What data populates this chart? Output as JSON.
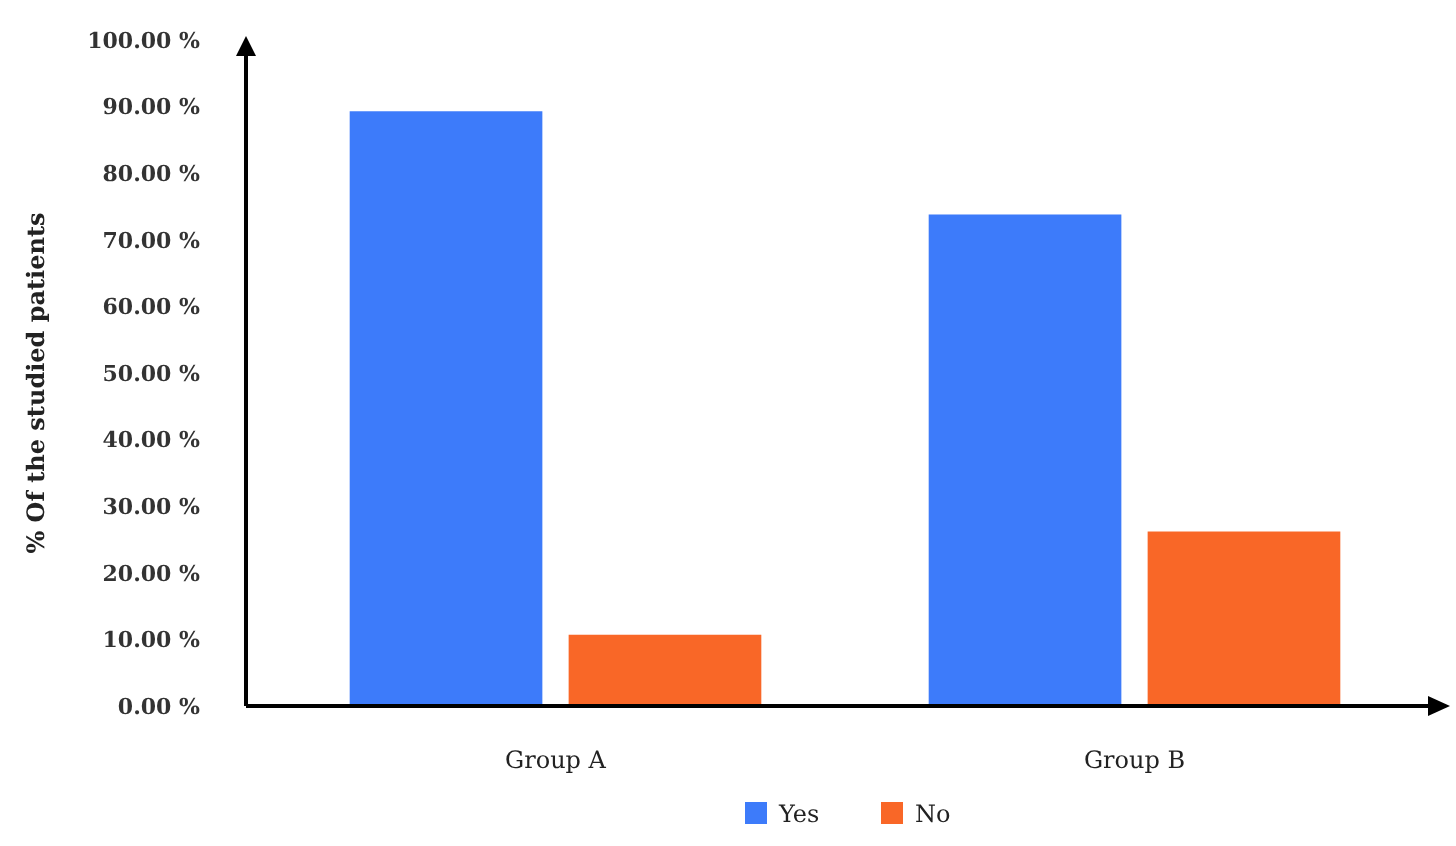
{
  "chart_data": {
    "type": "bar",
    "ylabel": "% Of the studied patients",
    "categories": [
      "Group A",
      "Group B"
    ],
    "series": [
      {
        "name": "Yes",
        "color": "#3d7bfa",
        "values": [
          89.3,
          73.8
        ]
      },
      {
        "name": "No",
        "color": "#f96727",
        "values": [
          10.7,
          26.2
        ]
      }
    ],
    "ylim": [
      0,
      100
    ],
    "yticks": [
      {
        "value": 0,
        "label": "0.00 %"
      },
      {
        "value": 10,
        "label": "10.00 %"
      },
      {
        "value": 20,
        "label": "20.00 %"
      },
      {
        "value": 30,
        "label": "30.00 %"
      },
      {
        "value": 40,
        "label": "40.00 %"
      },
      {
        "value": 50,
        "label": "50.00 %"
      },
      {
        "value": 60,
        "label": "60.00 %"
      },
      {
        "value": 70,
        "label": "70.00 %"
      },
      {
        "value": 80,
        "label": "80.00 %"
      },
      {
        "value": 90,
        "label": "90.00 %"
      },
      {
        "value": 100,
        "label": "100.00 %"
      }
    ],
    "grid": false,
    "legend": "bottom"
  }
}
